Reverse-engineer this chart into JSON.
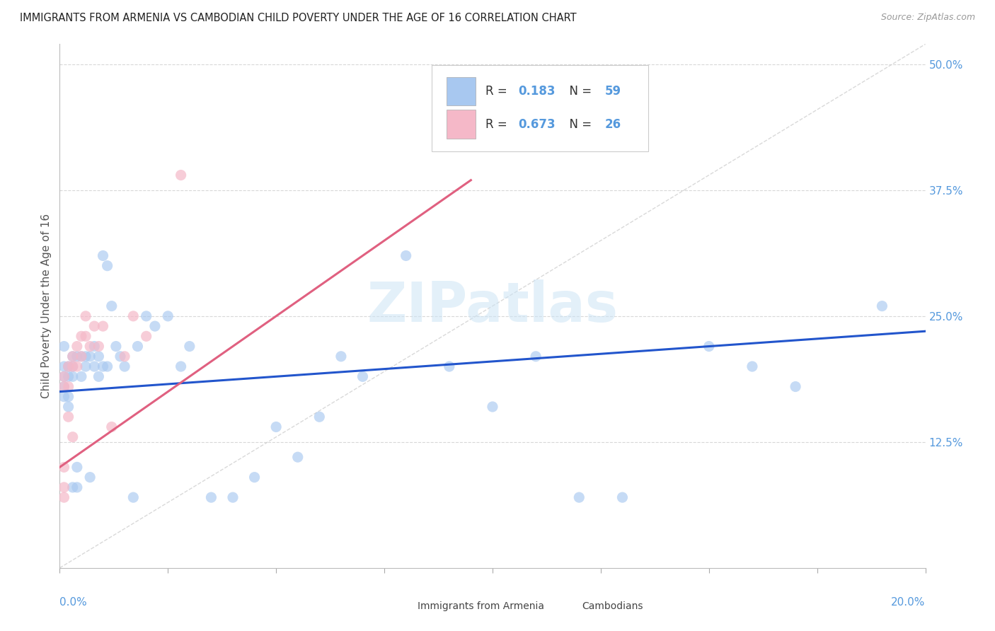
{
  "title": "IMMIGRANTS FROM ARMENIA VS CAMBODIAN CHILD POVERTY UNDER THE AGE OF 16 CORRELATION CHART",
  "source": "Source: ZipAtlas.com",
  "ylabel": "Child Poverty Under the Age of 16",
  "legend_label1": "Immigrants from Armenia",
  "legend_label2": "Cambodians",
  "color_blue": "#a8c8f0",
  "color_pink": "#f5b8c8",
  "color_blue_line": "#2255cc",
  "color_pink_line": "#e06080",
  "color_diag": "#d0d0d0",
  "color_grid": "#d8d8d8",
  "color_axis_label": "#5599dd",
  "watermark": "ZIPatlas",
  "xlim": [
    0.0,
    0.2
  ],
  "ylim": [
    0.0,
    0.52
  ],
  "ytick_vals": [
    0.125,
    0.25,
    0.375,
    0.5
  ],
  "ytick_labels": [
    "12.5%",
    "25.0%",
    "37.5%",
    "50.0%"
  ],
  "background_color": "#ffffff",
  "blue_x": [
    0.001,
    0.001,
    0.001,
    0.001,
    0.001,
    0.002,
    0.002,
    0.002,
    0.002,
    0.003,
    0.003,
    0.003,
    0.003,
    0.004,
    0.004,
    0.004,
    0.005,
    0.005,
    0.006,
    0.006,
    0.007,
    0.007,
    0.008,
    0.008,
    0.009,
    0.009,
    0.01,
    0.01,
    0.011,
    0.011,
    0.012,
    0.013,
    0.014,
    0.015,
    0.017,
    0.018,
    0.02,
    0.022,
    0.025,
    0.028,
    0.03,
    0.035,
    0.04,
    0.045,
    0.05,
    0.055,
    0.06,
    0.065,
    0.07,
    0.08,
    0.09,
    0.1,
    0.11,
    0.12,
    0.13,
    0.15,
    0.16,
    0.17,
    0.19
  ],
  "blue_y": [
    0.2,
    0.19,
    0.18,
    0.17,
    0.22,
    0.2,
    0.19,
    0.17,
    0.16,
    0.21,
    0.2,
    0.19,
    0.08,
    0.21,
    0.1,
    0.08,
    0.21,
    0.19,
    0.21,
    0.2,
    0.09,
    0.21,
    0.2,
    0.22,
    0.21,
    0.19,
    0.2,
    0.31,
    0.3,
    0.2,
    0.26,
    0.22,
    0.21,
    0.2,
    0.07,
    0.22,
    0.25,
    0.24,
    0.25,
    0.2,
    0.22,
    0.07,
    0.07,
    0.09,
    0.14,
    0.11,
    0.15,
    0.21,
    0.19,
    0.31,
    0.2,
    0.16,
    0.21,
    0.07,
    0.07,
    0.22,
    0.2,
    0.18,
    0.26
  ],
  "pink_x": [
    0.001,
    0.001,
    0.001,
    0.001,
    0.001,
    0.002,
    0.002,
    0.002,
    0.003,
    0.003,
    0.003,
    0.004,
    0.004,
    0.005,
    0.005,
    0.006,
    0.006,
    0.007,
    0.008,
    0.009,
    0.01,
    0.012,
    0.015,
    0.017,
    0.02,
    0.028
  ],
  "pink_y": [
    0.19,
    0.18,
    0.1,
    0.08,
    0.07,
    0.2,
    0.18,
    0.15,
    0.21,
    0.2,
    0.13,
    0.22,
    0.2,
    0.23,
    0.21,
    0.23,
    0.25,
    0.22,
    0.24,
    0.22,
    0.24,
    0.14,
    0.21,
    0.25,
    0.23,
    0.39
  ],
  "blue_trend_x": [
    0.0,
    0.2
  ],
  "blue_trend_y": [
    0.175,
    0.235
  ],
  "pink_trend_x": [
    0.0,
    0.095
  ],
  "pink_trend_y": [
    0.1,
    0.385
  ]
}
